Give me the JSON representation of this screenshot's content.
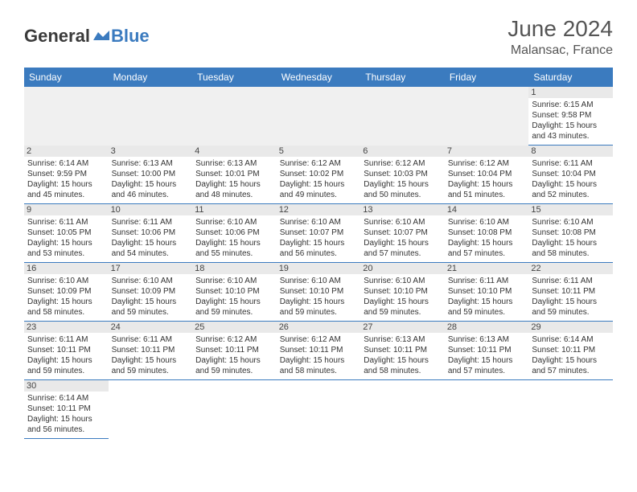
{
  "logo": {
    "text1": "General",
    "text2": "Blue",
    "shape_color": "#3b7bbf"
  },
  "title": "June 2024",
  "location": "Malansac, France",
  "colors": {
    "header_bg": "#3b7bbf",
    "header_text": "#ffffff",
    "daynum_bg": "#e9e9e9",
    "cell_border": "#3b7bbf",
    "blank_bg": "#f0f0f0"
  },
  "weekdays": [
    "Sunday",
    "Monday",
    "Tuesday",
    "Wednesday",
    "Thursday",
    "Friday",
    "Saturday"
  ],
  "weeks": [
    [
      null,
      null,
      null,
      null,
      null,
      null,
      {
        "n": "1",
        "sr": "Sunrise: 6:15 AM",
        "ss": "Sunset: 9:58 PM",
        "d1": "Daylight: 15 hours",
        "d2": "and 43 minutes."
      }
    ],
    [
      {
        "n": "2",
        "sr": "Sunrise: 6:14 AM",
        "ss": "Sunset: 9:59 PM",
        "d1": "Daylight: 15 hours",
        "d2": "and 45 minutes."
      },
      {
        "n": "3",
        "sr": "Sunrise: 6:13 AM",
        "ss": "Sunset: 10:00 PM",
        "d1": "Daylight: 15 hours",
        "d2": "and 46 minutes."
      },
      {
        "n": "4",
        "sr": "Sunrise: 6:13 AM",
        "ss": "Sunset: 10:01 PM",
        "d1": "Daylight: 15 hours",
        "d2": "and 48 minutes."
      },
      {
        "n": "5",
        "sr": "Sunrise: 6:12 AM",
        "ss": "Sunset: 10:02 PM",
        "d1": "Daylight: 15 hours",
        "d2": "and 49 minutes."
      },
      {
        "n": "6",
        "sr": "Sunrise: 6:12 AM",
        "ss": "Sunset: 10:03 PM",
        "d1": "Daylight: 15 hours",
        "d2": "and 50 minutes."
      },
      {
        "n": "7",
        "sr": "Sunrise: 6:12 AM",
        "ss": "Sunset: 10:04 PM",
        "d1": "Daylight: 15 hours",
        "d2": "and 51 minutes."
      },
      {
        "n": "8",
        "sr": "Sunrise: 6:11 AM",
        "ss": "Sunset: 10:04 PM",
        "d1": "Daylight: 15 hours",
        "d2": "and 52 minutes."
      }
    ],
    [
      {
        "n": "9",
        "sr": "Sunrise: 6:11 AM",
        "ss": "Sunset: 10:05 PM",
        "d1": "Daylight: 15 hours",
        "d2": "and 53 minutes."
      },
      {
        "n": "10",
        "sr": "Sunrise: 6:11 AM",
        "ss": "Sunset: 10:06 PM",
        "d1": "Daylight: 15 hours",
        "d2": "and 54 minutes."
      },
      {
        "n": "11",
        "sr": "Sunrise: 6:10 AM",
        "ss": "Sunset: 10:06 PM",
        "d1": "Daylight: 15 hours",
        "d2": "and 55 minutes."
      },
      {
        "n": "12",
        "sr": "Sunrise: 6:10 AM",
        "ss": "Sunset: 10:07 PM",
        "d1": "Daylight: 15 hours",
        "d2": "and 56 minutes."
      },
      {
        "n": "13",
        "sr": "Sunrise: 6:10 AM",
        "ss": "Sunset: 10:07 PM",
        "d1": "Daylight: 15 hours",
        "d2": "and 57 minutes."
      },
      {
        "n": "14",
        "sr": "Sunrise: 6:10 AM",
        "ss": "Sunset: 10:08 PM",
        "d1": "Daylight: 15 hours",
        "d2": "and 57 minutes."
      },
      {
        "n": "15",
        "sr": "Sunrise: 6:10 AM",
        "ss": "Sunset: 10:08 PM",
        "d1": "Daylight: 15 hours",
        "d2": "and 58 minutes."
      }
    ],
    [
      {
        "n": "16",
        "sr": "Sunrise: 6:10 AM",
        "ss": "Sunset: 10:09 PM",
        "d1": "Daylight: 15 hours",
        "d2": "and 58 minutes."
      },
      {
        "n": "17",
        "sr": "Sunrise: 6:10 AM",
        "ss": "Sunset: 10:09 PM",
        "d1": "Daylight: 15 hours",
        "d2": "and 59 minutes."
      },
      {
        "n": "18",
        "sr": "Sunrise: 6:10 AM",
        "ss": "Sunset: 10:10 PM",
        "d1": "Daylight: 15 hours",
        "d2": "and 59 minutes."
      },
      {
        "n": "19",
        "sr": "Sunrise: 6:10 AM",
        "ss": "Sunset: 10:10 PM",
        "d1": "Daylight: 15 hours",
        "d2": "and 59 minutes."
      },
      {
        "n": "20",
        "sr": "Sunrise: 6:10 AM",
        "ss": "Sunset: 10:10 PM",
        "d1": "Daylight: 15 hours",
        "d2": "and 59 minutes."
      },
      {
        "n": "21",
        "sr": "Sunrise: 6:11 AM",
        "ss": "Sunset: 10:10 PM",
        "d1": "Daylight: 15 hours",
        "d2": "and 59 minutes."
      },
      {
        "n": "22",
        "sr": "Sunrise: 6:11 AM",
        "ss": "Sunset: 10:11 PM",
        "d1": "Daylight: 15 hours",
        "d2": "and 59 minutes."
      }
    ],
    [
      {
        "n": "23",
        "sr": "Sunrise: 6:11 AM",
        "ss": "Sunset: 10:11 PM",
        "d1": "Daylight: 15 hours",
        "d2": "and 59 minutes."
      },
      {
        "n": "24",
        "sr": "Sunrise: 6:11 AM",
        "ss": "Sunset: 10:11 PM",
        "d1": "Daylight: 15 hours",
        "d2": "and 59 minutes."
      },
      {
        "n": "25",
        "sr": "Sunrise: 6:12 AM",
        "ss": "Sunset: 10:11 PM",
        "d1": "Daylight: 15 hours",
        "d2": "and 59 minutes."
      },
      {
        "n": "26",
        "sr": "Sunrise: 6:12 AM",
        "ss": "Sunset: 10:11 PM",
        "d1": "Daylight: 15 hours",
        "d2": "and 58 minutes."
      },
      {
        "n": "27",
        "sr": "Sunrise: 6:13 AM",
        "ss": "Sunset: 10:11 PM",
        "d1": "Daylight: 15 hours",
        "d2": "and 58 minutes."
      },
      {
        "n": "28",
        "sr": "Sunrise: 6:13 AM",
        "ss": "Sunset: 10:11 PM",
        "d1": "Daylight: 15 hours",
        "d2": "and 57 minutes."
      },
      {
        "n": "29",
        "sr": "Sunrise: 6:14 AM",
        "ss": "Sunset: 10:11 PM",
        "d1": "Daylight: 15 hours",
        "d2": "and 57 minutes."
      }
    ],
    [
      {
        "n": "30",
        "sr": "Sunrise: 6:14 AM",
        "ss": "Sunset: 10:11 PM",
        "d1": "Daylight: 15 hours",
        "d2": "and 56 minutes."
      },
      null,
      null,
      null,
      null,
      null,
      null
    ]
  ]
}
